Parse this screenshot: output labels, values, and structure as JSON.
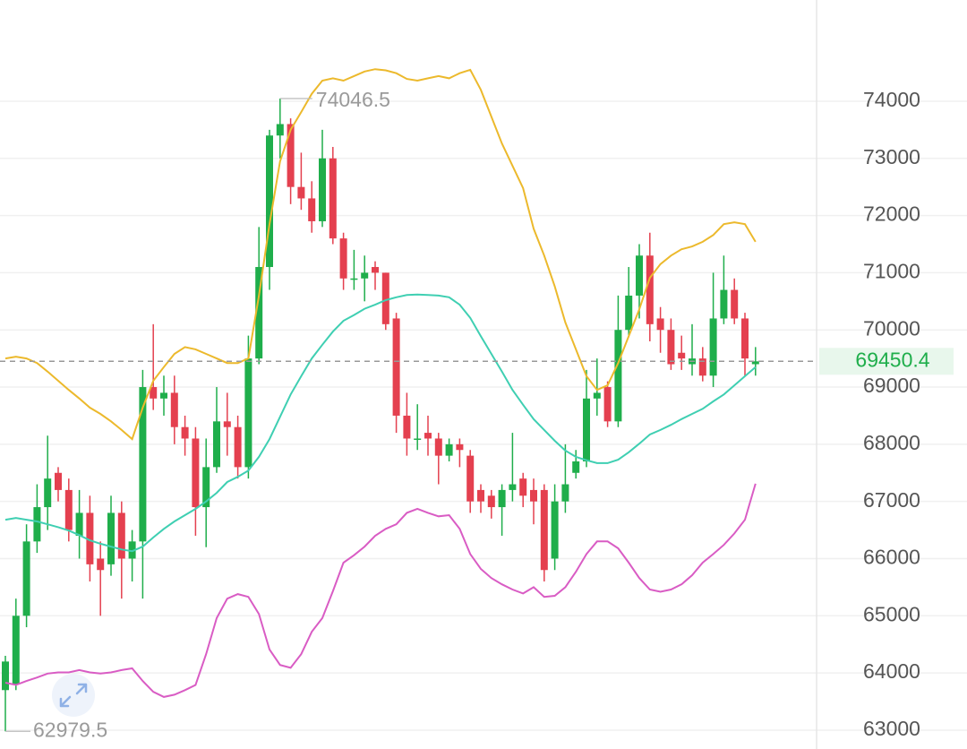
{
  "chart_data": {
    "type": "candlestick",
    "open": [
      63700,
      63800,
      65000,
      66300,
      66900,
      67500,
      67200,
      66400,
      66800,
      66000,
      65900,
      66800,
      66000,
      66300,
      69000,
      68800,
      68900,
      68300,
      68100,
      66900,
      67600,
      68400,
      68300,
      67600,
      69500,
      71100,
      73400,
      73600,
      72500,
      72300,
      71900,
      73000,
      71600,
      70900,
      70900,
      71100,
      71000,
      70200,
      68500,
      68100,
      68200,
      68100,
      67800,
      68000,
      67800,
      67200,
      67100,
      66900,
      67200,
      67400,
      67200,
      67200,
      66000,
      67000,
      67500,
      67700,
      68800,
      69000,
      68400,
      70000,
      70600,
      71300,
      70200,
      70000,
      69600,
      69400,
      69500,
      69200,
      70200,
      70700,
      70200,
      69400
    ],
    "high": [
      64300,
      65300,
      66600,
      67300,
      68150,
      67600,
      67400,
      67200,
      67100,
      66300,
      67100,
      67000,
      66500,
      69300,
      70100,
      69200,
      69200,
      68500,
      68300,
      68100,
      69000,
      68900,
      68500,
      69900,
      71800,
      73500,
      74046.5,
      73700,
      73100,
      72600,
      73500,
      73200,
      71700,
      71400,
      71300,
      71200,
      71000,
      70300,
      68900,
      68700,
      68500,
      68200,
      68100,
      68100,
      67900,
      67300,
      67200,
      67300,
      68200,
      67500,
      67400,
      67300,
      67300,
      68000,
      67900,
      69300,
      69500,
      69100,
      70600,
      71100,
      71500,
      71700,
      70400,
      70200,
      69900,
      70100,
      69700,
      71000,
      71300,
      70900,
      70300,
      69700
    ],
    "low": [
      62979.5,
      63700,
      64800,
      66100,
      66500,
      67000,
      66300,
      66000,
      65600,
      65000,
      65700,
      65300,
      65600,
      65300,
      68600,
      68500,
      68000,
      67800,
      66400,
      66200,
      67500,
      67800,
      67400,
      67400,
      69400,
      70700,
      73000,
      72200,
      72100,
      71700,
      71800,
      71500,
      70700,
      70700,
      70500,
      70700,
      70000,
      68200,
      67800,
      67900,
      67800,
      67300,
      67700,
      67600,
      66800,
      66800,
      66700,
      66400,
      67000,
      66900,
      66600,
      65600,
      65800,
      66800,
      67400,
      67600,
      68500,
      68300,
      68300,
      69900,
      70200,
      69800,
      69600,
      69300,
      69300,
      69200,
      69100,
      69000,
      70100,
      70100,
      69200,
      69200
    ],
    "close": [
      64200,
      65000,
      66300,
      66900,
      67400,
      67200,
      66500,
      66800,
      65900,
      65800,
      66800,
      66000,
      66300,
      69000,
      68800,
      68900,
      68300,
      68100,
      66900,
      67600,
      68400,
      68300,
      67600,
      69500,
      71100,
      73400,
      73600,
      72500,
      72300,
      71900,
      73000,
      71600,
      70900,
      70900,
      71000,
      71000,
      70100,
      68500,
      68100,
      68100,
      68100,
      67800,
      68000,
      67900,
      67000,
      67000,
      66900,
      67200,
      67300,
      67100,
      67000,
      65800,
      67000,
      67300,
      67700,
      68800,
      68900,
      68400,
      70000,
      70600,
      71300,
      70100,
      70000,
      69400,
      69500,
      69500,
      69200,
      70200,
      70700,
      70200,
      69500,
      69450.4
    ],
    "up_color": "#1fae4b",
    "down_color": "#e4404f",
    "lines": [
      {
        "color": "#ecb92c",
        "values": [
          69500,
          69530,
          69500,
          69420,
          69270,
          69110,
          68950,
          68800,
          68640,
          68530,
          68400,
          68250,
          68090,
          68640,
          69110,
          69350,
          69580,
          69700,
          69660,
          69580,
          69500,
          69420,
          69420,
          69500,
          70600,
          71850,
          72950,
          73500,
          73810,
          74130,
          74360,
          74400,
          74360,
          74440,
          74520,
          74560,
          74540,
          74490,
          74390,
          74360,
          74400,
          74440,
          74400,
          74490,
          74550,
          74200,
          73730,
          73260,
          72870,
          72480,
          71770,
          71300,
          70760,
          70130,
          69660,
          69190,
          68950,
          69030,
          69420,
          69890,
          70360,
          70910,
          71150,
          71300,
          71410,
          71460,
          71540,
          71660,
          71850,
          71880,
          71850,
          71540
        ]
      },
      {
        "color": "#3fcfb2",
        "values": [
          66680,
          66710,
          66680,
          66650,
          66600,
          66550,
          66490,
          66410,
          66320,
          66260,
          66210,
          66160,
          66130,
          66210,
          66370,
          66520,
          66650,
          66760,
          66870,
          67000,
          67150,
          67340,
          67430,
          67540,
          67780,
          68090,
          68480,
          68870,
          69190,
          69500,
          69740,
          69970,
          70160,
          70260,
          70370,
          70440,
          70520,
          70570,
          70610,
          70620,
          70610,
          70600,
          70570,
          70440,
          70210,
          69890,
          69580,
          69270,
          68950,
          68690,
          68440,
          68250,
          68060,
          67890,
          67780,
          67720,
          67670,
          67670,
          67730,
          67860,
          68010,
          68170,
          68250,
          68340,
          68440,
          68530,
          68620,
          68750,
          68870,
          69030,
          69190,
          69350
        ]
      },
      {
        "color": "#d95cc4",
        "values": [
          63830,
          63790,
          63860,
          63920,
          63990,
          64010,
          64010,
          64050,
          64010,
          63990,
          64010,
          64050,
          64080,
          63860,
          63670,
          63580,
          63620,
          63700,
          63790,
          64330,
          64960,
          65300,
          65380,
          65330,
          65030,
          64410,
          64140,
          64090,
          64330,
          64720,
          64960,
          65430,
          65930,
          66060,
          66210,
          66400,
          66520,
          66600,
          66800,
          66870,
          66800,
          66740,
          66760,
          66520,
          66080,
          65820,
          65660,
          65550,
          65460,
          65390,
          65500,
          65330,
          65350,
          65500,
          65770,
          66080,
          66300,
          66300,
          66180,
          65930,
          65660,
          65460,
          65420,
          65460,
          65550,
          65710,
          65930,
          66080,
          66240,
          66440,
          66680,
          67310
        ]
      }
    ],
    "ylim": [
      62670,
      75770
    ],
    "yticks": [
      63000,
      64000,
      65000,
      66000,
      67000,
      68000,
      69000,
      70000,
      71000,
      72000,
      73000,
      74000
    ],
    "grid": true
  }
}
